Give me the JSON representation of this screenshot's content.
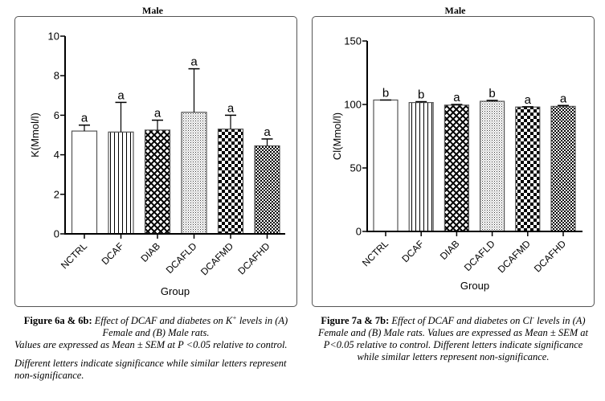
{
  "chart_data": [
    {
      "type": "bar",
      "title": "Male",
      "xlabel": "Group",
      "ylabel": "K(Mmol/l)",
      "ylim": [
        0,
        10
      ],
      "yticks": [
        0,
        2,
        4,
        6,
        8,
        10
      ],
      "ytick_labels": [
        "0",
        "2",
        "4",
        "6",
        "8",
        "10"
      ],
      "categories": [
        "NCTRL",
        "DCAF",
        "DIAB",
        "DCAFLD",
        "DCAFMD",
        "DCAFHD"
      ],
      "values": [
        5.2,
        5.15,
        5.25,
        6.15,
        5.3,
        4.45
      ],
      "error_upper": [
        5.5,
        6.65,
        5.75,
        8.35,
        6.0,
        4.8
      ],
      "significance_letters": [
        "a",
        "a",
        "a",
        "a",
        "a",
        "a"
      ],
      "patterns": [
        "plain",
        "vertical-lines",
        "diamond-crosshatch",
        "fine-dots",
        "checker",
        "fine-checker"
      ],
      "grid": false
    },
    {
      "type": "bar",
      "title": "Male",
      "xlabel": "Group",
      "ylabel": "Cl(Mmol/l)",
      "ylim": [
        0,
        150
      ],
      "yticks": [
        0,
        50,
        100,
        150
      ],
      "ytick_labels": [
        "0",
        "50",
        "100",
        "150"
      ],
      "categories": [
        "NCTRL",
        "DCAF",
        "DIAB",
        "DCAFLD",
        "DCAFMD",
        "DCAFHD"
      ],
      "values": [
        103.5,
        101.5,
        99.5,
        102.5,
        98,
        98.5
      ],
      "error_upper": [
        103.5,
        102.2,
        100,
        103.2,
        98.2,
        99.2
      ],
      "significance_letters": [
        "b",
        "b",
        "a",
        "b",
        "a",
        "a"
      ],
      "patterns": [
        "plain",
        "vertical-lines",
        "diamond-crosshatch",
        "fine-dots",
        "checker",
        "fine-checker"
      ],
      "grid": false
    }
  ],
  "captions": {
    "left": {
      "label": "Figure 6a & 6b:",
      "line1_rest": " Effect of DCAF and diabetes on K",
      "sup": "+",
      "line1_tail": " levels in (A)",
      "line2": "Female and (B) Male rats.",
      "para2": "Values are expressed as Mean ± SEM at P <0.05 relative to control.",
      "para3": "Different letters indicate significance while similar letters represent non-significance."
    },
    "right": {
      "label": "Figure 7a & 7b:",
      "text_a": " Effect of DCAF and diabetes on Cl",
      "sup": "-",
      "text_b": " levels in (A) Female and (B) Male rats. Values are expressed as Mean ± SEM at P<0.05 relative to control. Different letters indicate significance while similar letters represent non-significance."
    }
  }
}
